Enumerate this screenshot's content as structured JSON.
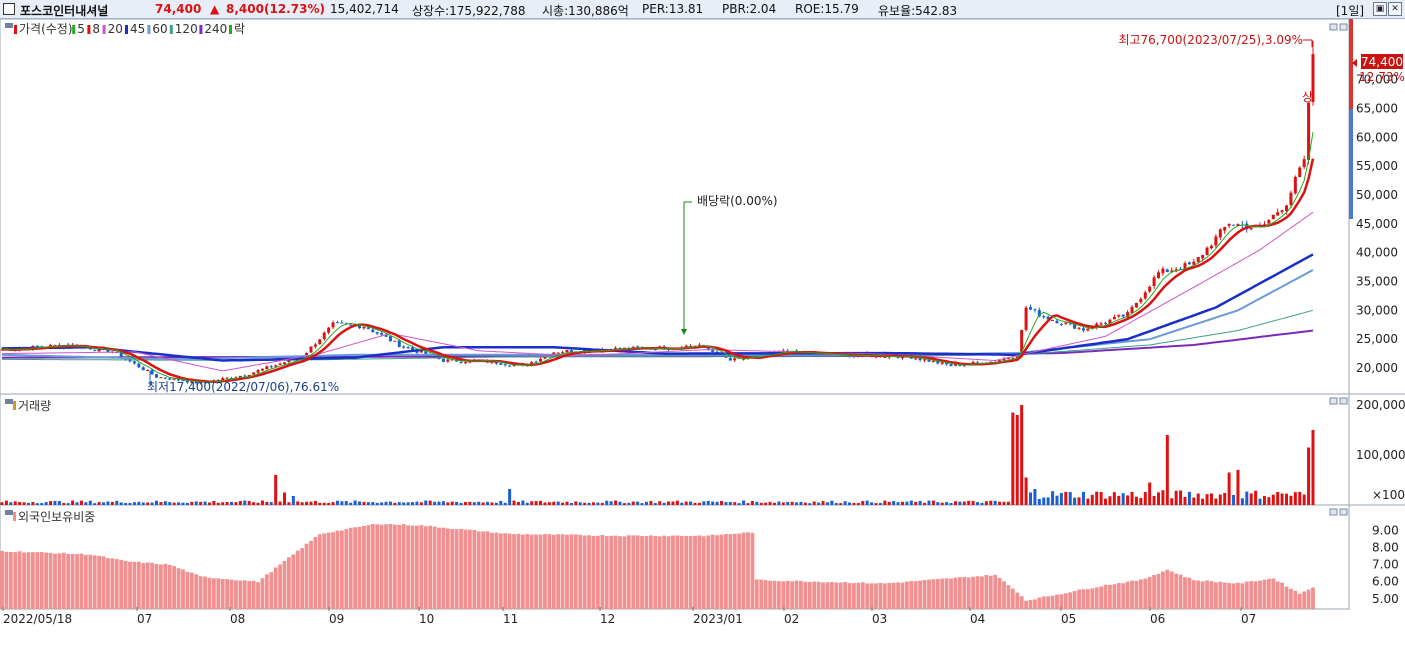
{
  "header": {
    "stock_name": "포스코인터내셔널",
    "price": "74,400",
    "change_arrow": "▲",
    "change": "8,400",
    "change_pct": "(12.73%)",
    "volume": "15,402,714",
    "listed_shares": "상장수:175,922,788",
    "market_cap": "시총:130,886억",
    "per": "PER:13.81",
    "pbr": "PBR:2.04",
    "roe": "ROE:15.79",
    "retention": "유보율:542.83",
    "period": "[1일]"
  },
  "colors": {
    "price_up": "#dd1111",
    "price_down": "#1a5fd0",
    "ma5": "#22aa22",
    "ma8": "#dd1111",
    "ma20": "#cc55cc",
    "ma45": "#1a2ec8",
    "ma60": "#6a9ad8",
    "ma120": "#3aa08a",
    "ma240": "#7a2ab8",
    "foreign_bar": "#f09090"
  },
  "chart_data": [
    {
      "type": "candlestick",
      "legend": [
        {
          "label": "가격(수정)",
          "color": "#dd1111"
        },
        {
          "label": "5",
          "color": "#22aa22"
        },
        {
          "label": "8",
          "color": "#dd1111"
        },
        {
          "label": "20",
          "color": "#cc55cc"
        },
        {
          "label": "45",
          "color": "#1a2ec8"
        },
        {
          "label": "60",
          "color": "#6a9ad8"
        },
        {
          "label": "120",
          "color": "#3aa08a"
        },
        {
          "label": "240",
          "color": "#7a2ab8"
        },
        {
          "label": "락",
          "color": "#22aa22"
        }
      ],
      "y_ticks": [
        "70,000",
        "65,000",
        "60,000",
        "55,000",
        "50,000",
        "45,000",
        "40,000",
        "35,000",
        "30,000",
        "25,000",
        "20,000"
      ],
      "ylim": [
        15500,
        80500
      ],
      "last_price_label": "74,400",
      "last_change_label": "12.73%",
      "annotations": {
        "high": "최고76,700(2023/07/25),3.09%",
        "low": "최저17,400(2022/07/06),76.61%",
        "dividend": "배당락(0.00%)",
        "limit_up": "상"
      },
      "close_anchors": [
        [
          0,
          23200
        ],
        [
          15,
          24000
        ],
        [
          25,
          22900
        ],
        [
          35,
          18500
        ],
        [
          45,
          17400
        ],
        [
          55,
          18800
        ],
        [
          68,
          22000
        ],
        [
          75,
          27500
        ],
        [
          82,
          27300
        ],
        [
          90,
          24000
        ],
        [
          100,
          21300
        ],
        [
          110,
          21200
        ],
        [
          118,
          20300
        ],
        [
          125,
          22800
        ],
        [
          138,
          23300
        ],
        [
          150,
          23500
        ],
        [
          158,
          24000
        ],
        [
          165,
          21300
        ],
        [
          178,
          22800
        ],
        [
          190,
          22200
        ],
        [
          205,
          22100
        ],
        [
          215,
          20400
        ],
        [
          225,
          21200
        ],
        [
          230,
          22300
        ],
        [
          232,
          30500
        ],
        [
          236,
          28900
        ],
        [
          245,
          26700
        ],
        [
          255,
          29300
        ],
        [
          262,
          36500
        ],
        [
          270,
          38100
        ],
        [
          278,
          45200
        ],
        [
          285,
          44100
        ],
        [
          291,
          48700
        ],
        [
          295,
          56200
        ],
        [
          296,
          66000
        ],
        [
          297,
          74400
        ]
      ],
      "ma_anchors": {
        "ma20": [
          [
            0,
            22500
          ],
          [
            30,
            22800
          ],
          [
            50,
            19500
          ],
          [
            72,
            22500
          ],
          [
            88,
            26000
          ],
          [
            108,
            23000
          ],
          [
            130,
            22100
          ],
          [
            160,
            23200
          ],
          [
            200,
            22400
          ],
          [
            225,
            21300
          ],
          [
            232,
            22500
          ],
          [
            250,
            25500
          ],
          [
            270,
            34000
          ],
          [
            285,
            40500
          ],
          [
            297,
            47000
          ]
        ],
        "ma45": [
          [
            0,
            23400
          ],
          [
            20,
            23600
          ],
          [
            50,
            21300
          ],
          [
            80,
            21800
          ],
          [
            100,
            23600
          ],
          [
            125,
            23600
          ],
          [
            150,
            22500
          ],
          [
            200,
            22600
          ],
          [
            230,
            22300
          ],
          [
            255,
            25000
          ],
          [
            275,
            30500
          ],
          [
            297,
            39700
          ]
        ],
        "ma60": [
          [
            0,
            22300
          ],
          [
            40,
            21500
          ],
          [
            80,
            22300
          ],
          [
            130,
            22300
          ],
          [
            200,
            22300
          ],
          [
            230,
            22600
          ],
          [
            260,
            25000
          ],
          [
            280,
            30000
          ],
          [
            297,
            37000
          ]
        ],
        "ma120": [
          [
            0,
            21500
          ],
          [
            60,
            21300
          ],
          [
            120,
            22000
          ],
          [
            200,
            22100
          ],
          [
            230,
            22300
          ],
          [
            260,
            24000
          ],
          [
            280,
            26500
          ],
          [
            297,
            30000
          ]
        ],
        "ma240": [
          [
            0,
            21800
          ],
          [
            100,
            22000
          ],
          [
            200,
            22100
          ],
          [
            240,
            22600
          ],
          [
            270,
            24000
          ],
          [
            297,
            26500
          ]
        ]
      }
    },
    {
      "type": "bar",
      "title": "거래량",
      "y_ticks": [
        "200,000",
        "100,000"
      ],
      "y_unit": "×100",
      "ylim": [
        0,
        210000
      ],
      "base_volume": 6000,
      "spikes": [
        [
          62,
          60000
        ],
        [
          64,
          25000
        ],
        [
          66,
          18000
        ],
        [
          115,
          32000
        ],
        [
          229,
          185000
        ],
        [
          230,
          180000
        ],
        [
          231,
          200000
        ],
        [
          232,
          55000
        ],
        [
          234,
          32000
        ],
        [
          260,
          45000
        ],
        [
          264,
          140000
        ],
        [
          278,
          65000
        ],
        [
          280,
          70000
        ],
        [
          290,
          23000
        ],
        [
          296,
          115000
        ],
        [
          297,
          150000
        ]
      ],
      "elevated_from": 230,
      "elevated_volume": 20000
    },
    {
      "type": "bar",
      "title": "외국인보유비중",
      "y_ticks": [
        "9.00",
        "8.00",
        "7.00",
        "6.00",
        "5.00"
      ],
      "ylim": [
        4.4,
        10.5
      ],
      "value_anchors": [
        [
          0,
          7.8
        ],
        [
          20,
          7.6
        ],
        [
          28,
          7.2
        ],
        [
          38,
          7.0
        ],
        [
          45,
          6.3
        ],
        [
          58,
          6.0
        ],
        [
          64,
          7.2
        ],
        [
          72,
          8.8
        ],
        [
          85,
          9.4
        ],
        [
          95,
          9.3
        ],
        [
          115,
          8.8
        ],
        [
          140,
          8.7
        ],
        [
          160,
          8.7
        ],
        [
          170,
          8.9
        ],
        [
          171,
          6.1
        ],
        [
          200,
          5.9
        ],
        [
          225,
          6.4
        ],
        [
          230,
          5.4
        ],
        [
          232,
          4.9
        ],
        [
          240,
          5.3
        ],
        [
          250,
          5.8
        ],
        [
          258,
          6.1
        ],
        [
          264,
          6.7
        ],
        [
          270,
          6.1
        ],
        [
          280,
          5.9
        ],
        [
          288,
          6.2
        ],
        [
          294,
          5.3
        ],
        [
          297,
          5.7
        ]
      ]
    }
  ],
  "x_axis": {
    "labels": [
      "2022/05/18",
      "07",
      "08",
      "09",
      "10",
      "11",
      "12",
      "2023/01",
      "02",
      "03",
      "04",
      "05",
      "06",
      "07"
    ]
  },
  "panel_labels": {
    "price": "가격(수정)",
    "volume": "거래량",
    "foreign": "외국인보유비중"
  }
}
